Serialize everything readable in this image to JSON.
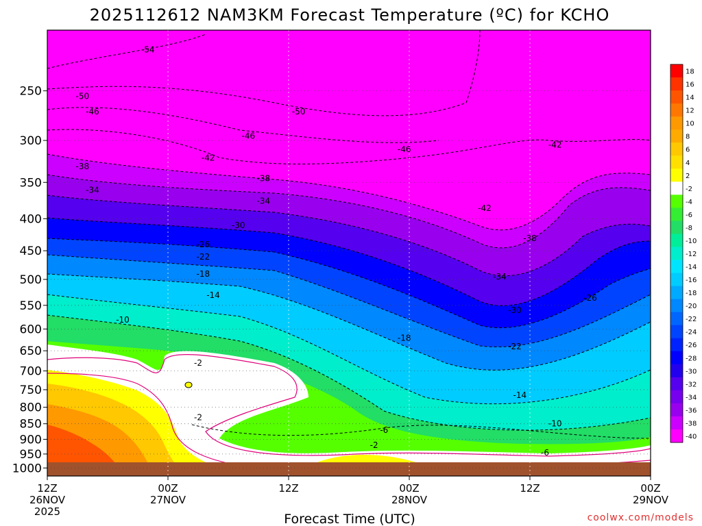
{
  "chart_data": {
    "type": "heatmap",
    "title": "2025112612 NAM3KM Forecast Temperature (ºC) for KCHO",
    "xlabel": "Forecast Time (UTC)",
    "credit": "coolwx.com/models",
    "x_ticks": [
      {
        "hour": 0,
        "line1": "12Z",
        "line2": "26NOV",
        "line3": "2025"
      },
      {
        "hour": 12,
        "line1": "00Z",
        "line2": "27NOV",
        "line3": ""
      },
      {
        "hour": 24,
        "line1": "12Z",
        "line2": "",
        "line3": ""
      },
      {
        "hour": 36,
        "line1": "00Z",
        "line2": "28NOV",
        "line3": ""
      },
      {
        "hour": 48,
        "line1": "12Z",
        "line2": "",
        "line3": ""
      },
      {
        "hour": 60,
        "line1": "00Z",
        "line2": "29NOV",
        "line3": ""
      }
    ],
    "xlim_hours": [
      0,
      60
    ],
    "y_ticks": [
      "250",
      "300",
      "350",
      "400",
      "450",
      "500",
      "550",
      "600",
      "650",
      "700",
      "750",
      "800",
      "850",
      "900",
      "950",
      "1000"
    ],
    "y_values": [
      250,
      300,
      350,
      400,
      450,
      500,
      550,
      600,
      650,
      700,
      750,
      800,
      850,
      900,
      950,
      1000
    ],
    "ylim_hpa": [
      200,
      1030
    ],
    "y_scale": "log",
    "colorbar": {
      "labels": [
        "18",
        "16",
        "14",
        "12",
        "10",
        "8",
        "6",
        "4",
        "2",
        "-2",
        "-4",
        "-6",
        "-8",
        "-10",
        "-12",
        "-14",
        "-16",
        "-18",
        "-20",
        "-22",
        "-24",
        "-26",
        "-28",
        "-30",
        "-32",
        "-34",
        "-36",
        "-38",
        "-40"
      ],
      "colors": [
        "#ff0000",
        "#ff3300",
        "#ff5500",
        "#ff7700",
        "#ff9900",
        "#ffaa00",
        "#ffc800",
        "#ffe000",
        "#ffff00",
        "#ffffff",
        "#55ff00",
        "#33ee33",
        "#22dd66",
        "#00ee99",
        "#00eecc",
        "#00e5ff",
        "#00ccff",
        "#00aaff",
        "#0088ff",
        "#0066ff",
        "#0044ff",
        "#0022ff",
        "#0000ff",
        "#2200ee",
        "#5500ee",
        "#7700ee",
        "#9900ee",
        "#cc00ff",
        "#ff00ff"
      ]
    },
    "isotherms": [
      {
        "label": "-54",
        "hour": 10,
        "hpa": 215
      },
      {
        "label": "-50",
        "hour": 3.5,
        "hpa": 255
      },
      {
        "label": "-46",
        "hour": 4.5,
        "hpa": 270
      },
      {
        "label": "-42",
        "hour": 16,
        "hpa": 320
      },
      {
        "label": "-38",
        "hour": 3.5,
        "hpa": 330
      },
      {
        "label": "-34",
        "hour": 4.5,
        "hpa": 360
      },
      {
        "label": "-30",
        "hour": 19,
        "hpa": 410
      },
      {
        "label": "-26",
        "hour": 15.5,
        "hpa": 440
      },
      {
        "label": "-22",
        "hour": 15.5,
        "hpa": 460
      },
      {
        "label": "-18",
        "hour": 15.5,
        "hpa": 490
      },
      {
        "label": "-14",
        "hour": 16.5,
        "hpa": 530
      },
      {
        "label": "-10",
        "hour": 7.5,
        "hpa": 580
      },
      {
        "label": "-2",
        "hour": 15,
        "hpa": 680
      },
      {
        "label": "-2",
        "hour": 15,
        "hpa": 830
      },
      {
        "label": "-50",
        "hour": 25,
        "hpa": 270
      },
      {
        "label": "-46",
        "hour": 20,
        "hpa": 295
      },
      {
        "label": "-38",
        "hour": 21.5,
        "hpa": 345
      },
      {
        "label": "-34",
        "hour": 21.5,
        "hpa": 375
      },
      {
        "label": "-46",
        "hour": 35.5,
        "hpa": 310
      },
      {
        "label": "-18",
        "hour": 35.5,
        "hpa": 620
      },
      {
        "label": "-6",
        "hour": 33.5,
        "hpa": 870
      },
      {
        "label": "-2",
        "hour": 32.5,
        "hpa": 920
      },
      {
        "label": "-42",
        "hour": 43.5,
        "hpa": 385
      },
      {
        "label": "-38",
        "hour": 48,
        "hpa": 430
      },
      {
        "label": "-34",
        "hour": 45,
        "hpa": 495
      },
      {
        "label": "-30",
        "hour": 46.5,
        "hpa": 560
      },
      {
        "label": "-22",
        "hour": 46.5,
        "hpa": 640
      },
      {
        "label": "-14",
        "hour": 47,
        "hpa": 765
      },
      {
        "label": "-10",
        "hour": 50.5,
        "hpa": 850
      },
      {
        "label": "-6",
        "hour": 49.5,
        "hpa": 945
      },
      {
        "label": "-42",
        "hour": 50.5,
        "hpa": 305
      },
      {
        "label": "-26",
        "hour": 54,
        "hpa": 535
      }
    ]
  }
}
